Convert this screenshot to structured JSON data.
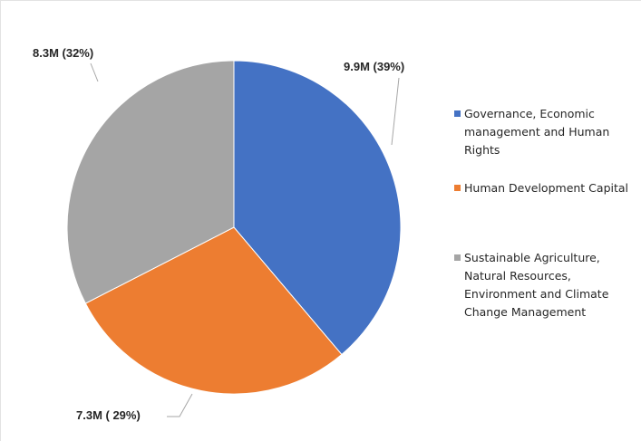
{
  "chart_data": {
    "type": "pie",
    "categories": [
      "Governance, Economic management and Human Rights",
      "Human Development Capital",
      "Sustainable Agriculture, Natural Resources, Environment and Climate Change Management"
    ],
    "values": [
      9.9,
      7.3,
      8.3
    ],
    "percentages": [
      39,
      29,
      32
    ],
    "data_labels": [
      "9.9M  (39%)",
      "7.3M ( 29%)",
      "8.3M (32%)"
    ],
    "colors": [
      "#4472C4",
      "#ED7D31",
      "#A5A5A5"
    ],
    "legend_position": "right",
    "start_angle": "12 o'clock",
    "direction": "clockwise"
  },
  "legend": {
    "items": [
      {
        "label": "Governance, Economic management and Human Rights",
        "color": "#4472C4"
      },
      {
        "label": "Human Development Capital",
        "color": "#ED7D31"
      },
      {
        "label": "Sustainable Agriculture, Natural Resources, Environment and Climate Change Management",
        "color": "#A5A5A5"
      }
    ]
  }
}
